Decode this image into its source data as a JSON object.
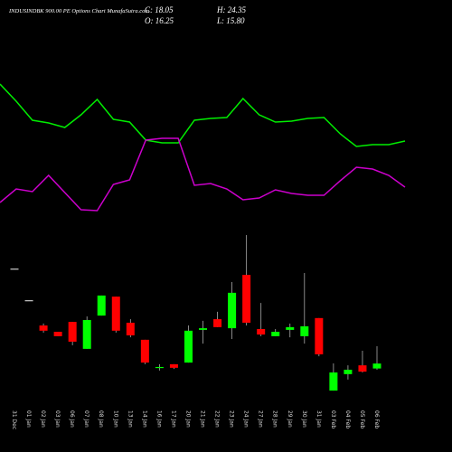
{
  "chart_data": {
    "type": "candlestick",
    "title": "INDUSINDBK 900.00 PE Options Chart MunafaSutra.com",
    "annotations": [
      "C: 18.05",
      "H: 24.35",
      "O: 16.25",
      "L: 15.80"
    ],
    "categories": [
      "31 Dec",
      "01 Jan",
      "02 Jan",
      "03 Jan",
      "06 Jan",
      "07 Jan",
      "08 Jan",
      "10 Jan",
      "13 Jan",
      "14 Jan",
      "16 Jan",
      "17 Jan",
      "20 Jan",
      "21 Jan",
      "22 Jan",
      "23 Jan",
      "24 Jan",
      "27 Jan",
      "28 Jan",
      "29 Jan",
      "30 Jan",
      "31 Jan",
      "03 Feb",
      "04 Feb",
      "05 Feb",
      "06 Feb"
    ],
    "open": [
      52.6,
      41.1,
      31.9,
      29.6,
      33.2,
      23.4,
      35.5,
      42.4,
      32.9,
      26.7,
      16.5,
      17.8,
      18.4,
      30.3,
      34.2,
      30.9,
      50.3,
      30.6,
      28.0,
      30.3,
      28.0,
      34.6,
      8.2,
      14.2,
      17.4,
      16.25
    ],
    "high": [
      52.6,
      41.1,
      32.6,
      29.6,
      33.2,
      35.2,
      42.8,
      42.4,
      34.2,
      26.7,
      17.8,
      17.8,
      31.9,
      33.6,
      36.9,
      47.7,
      64.8,
      40.1,
      30.6,
      32.6,
      51.0,
      34.6,
      18.1,
      17.4,
      22.7,
      24.35
    ],
    "low": [
      52.6,
      41.1,
      29.3,
      28.0,
      24.7,
      23.4,
      35.5,
      29.3,
      27.6,
      17.8,
      15.5,
      16.1,
      18.4,
      25.3,
      31.3,
      27.0,
      31.9,
      28.0,
      28.0,
      27.6,
      25.3,
      20.7,
      8.2,
      12.2,
      14.8,
      15.8
    ],
    "close": [
      52.6,
      41.1,
      30.0,
      28.0,
      26.0,
      33.9,
      42.8,
      30.0,
      28.3,
      18.4,
      16.8,
      16.5,
      30.0,
      30.9,
      31.3,
      43.8,
      32.9,
      28.6,
      29.6,
      31.3,
      31.6,
      21.4,
      14.8,
      15.8,
      15.1,
      18.05
    ],
    "up_color": "#00ff00",
    "down_color": "#ff0000",
    "ylim": [
      5.6,
      68.1
    ],
    "lines": [
      {
        "color": "#00ee00",
        "values": [
          83.5,
          74,
          63.5,
          62,
          59.5,
          66.5,
          75,
          64,
          62.5,
          52.5,
          51,
          51,
          63.5,
          64.5,
          65,
          75.5,
          66.5,
          62.5,
          63,
          64.5,
          65,
          56,
          49,
          50,
          50,
          52
        ]
      },
      {
        "color": "#cc00cc",
        "values": [
          18,
          25.5,
          24,
          33,
          23.5,
          14,
          13.5,
          28,
          30.5,
          52.5,
          53.5,
          53.5,
          27.5,
          28.5,
          25.5,
          19.5,
          20.5,
          25,
          23,
          22,
          22,
          30,
          37.5,
          36.5,
          33,
          26.5
        ]
      }
    ],
    "y2lim": [
      0,
      100
    ]
  }
}
